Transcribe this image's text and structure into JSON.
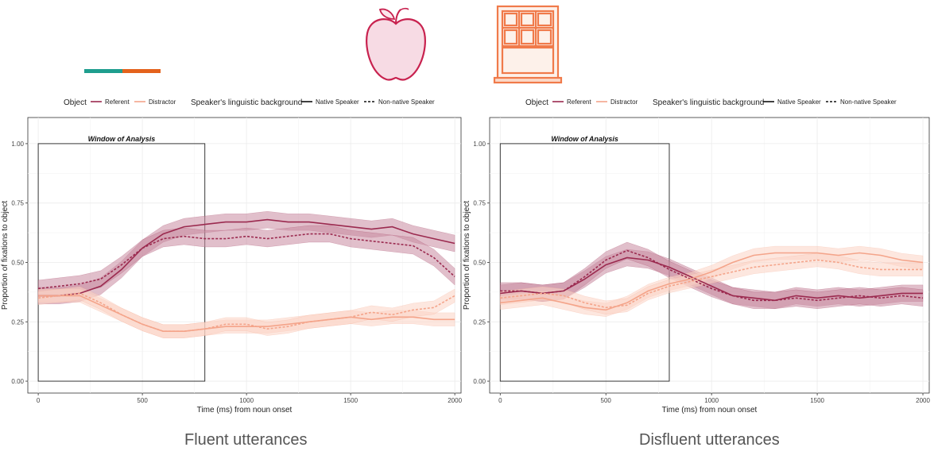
{
  "captions": {
    "fluent": "Fluent utterances",
    "disfluent": "Disfluent utterances"
  },
  "legend": {
    "object_title": "Object",
    "referent": "Referent",
    "distractor": "Distractor",
    "background_title": "Speaker's linguistic background",
    "native": "Native Speaker",
    "nonnative": "Non-native Speaker"
  },
  "colors": {
    "referent": "#9b2a4f",
    "referent_band": "#c98aa0",
    "distractor": "#f4a48a",
    "distractor_band": "#fbd3c4",
    "timeline_teal": "#1f9e8e",
    "timeline_orange": "#e4621c",
    "apple": "#c8224f",
    "window": "#f07a4a"
  },
  "icons": [
    "apple-icon",
    "window-icon"
  ],
  "chart_data": [
    {
      "type": "line",
      "name": "fluent",
      "annotation": "Window of Analysis",
      "window_of_analysis": [
        0,
        800
      ],
      "xlabel": "Time (ms) from noun onset",
      "ylabel": "Proportion of fixations to object",
      "xlim": [
        -50,
        2030
      ],
      "ylim": [
        -0.05,
        1.11
      ],
      "xticks": [
        0,
        500,
        1000,
        1500,
        2000
      ],
      "yticks": [
        0.0,
        0.25,
        0.5,
        0.75,
        1.0
      ],
      "ytick_labels": [
        "0.00",
        "0.25",
        "0.50",
        "0.75",
        "1.00"
      ],
      "grid": true,
      "x": [
        0,
        100,
        200,
        300,
        400,
        500,
        600,
        700,
        800,
        900,
        1000,
        1100,
        1200,
        1300,
        1400,
        1500,
        1600,
        1700,
        1800,
        1900,
        2000
      ],
      "series": [
        {
          "object": "referent",
          "speaker": "native",
          "values": [
            0.36,
            0.36,
            0.37,
            0.4,
            0.47,
            0.56,
            0.62,
            0.65,
            0.66,
            0.67,
            0.67,
            0.68,
            0.67,
            0.67,
            0.66,
            0.65,
            0.64,
            0.65,
            0.62,
            0.6,
            0.58
          ]
        },
        {
          "object": "referent",
          "speaker": "nonnative",
          "values": [
            0.39,
            0.4,
            0.41,
            0.43,
            0.49,
            0.56,
            0.6,
            0.61,
            0.6,
            0.6,
            0.61,
            0.6,
            0.61,
            0.62,
            0.62,
            0.6,
            0.59,
            0.58,
            0.57,
            0.52,
            0.44
          ]
        },
        {
          "object": "distractor",
          "speaker": "native",
          "values": [
            0.36,
            0.36,
            0.36,
            0.32,
            0.28,
            0.24,
            0.21,
            0.21,
            0.22,
            0.23,
            0.23,
            0.23,
            0.24,
            0.25,
            0.26,
            0.27,
            0.26,
            0.27,
            0.27,
            0.26,
            0.26
          ]
        },
        {
          "object": "distractor",
          "speaker": "nonnative",
          "values": [
            0.35,
            0.36,
            0.37,
            0.33,
            0.28,
            0.24,
            0.21,
            0.21,
            0.22,
            0.24,
            0.24,
            0.22,
            0.23,
            0.25,
            0.26,
            0.27,
            0.29,
            0.28,
            0.3,
            0.31,
            0.36
          ]
        }
      ]
    },
    {
      "type": "line",
      "name": "disfluent",
      "annotation": "Window of Analysis",
      "window_of_analysis": [
        0,
        800
      ],
      "xlabel": "Time (ms) from noun onset",
      "ylabel": "Proportion of fixations to object",
      "xlim": [
        -50,
        2030
      ],
      "ylim": [
        -0.05,
        1.11
      ],
      "xticks": [
        0,
        500,
        1000,
        1500,
        2000
      ],
      "yticks": [
        0.0,
        0.25,
        0.5,
        0.75,
        1.0
      ],
      "ytick_labels": [
        "0.00",
        "0.25",
        "0.50",
        "0.75",
        "1.00"
      ],
      "grid": true,
      "x": [
        0,
        100,
        200,
        300,
        400,
        500,
        600,
        700,
        800,
        900,
        1000,
        1100,
        1200,
        1300,
        1400,
        1500,
        1600,
        1700,
        1800,
        1900,
        2000
      ],
      "series": [
        {
          "object": "referent",
          "speaker": "native",
          "values": [
            0.37,
            0.38,
            0.37,
            0.38,
            0.43,
            0.49,
            0.52,
            0.51,
            0.48,
            0.44,
            0.4,
            0.36,
            0.35,
            0.34,
            0.36,
            0.35,
            0.36,
            0.35,
            0.36,
            0.37,
            0.37
          ]
        },
        {
          "object": "referent",
          "speaker": "nonnative",
          "values": [
            0.38,
            0.38,
            0.37,
            0.38,
            0.44,
            0.51,
            0.55,
            0.52,
            0.47,
            0.43,
            0.39,
            0.36,
            0.34,
            0.34,
            0.35,
            0.34,
            0.35,
            0.36,
            0.35,
            0.36,
            0.35
          ]
        },
        {
          "object": "distractor",
          "speaker": "native",
          "values": [
            0.33,
            0.34,
            0.35,
            0.33,
            0.31,
            0.3,
            0.33,
            0.38,
            0.41,
            0.43,
            0.46,
            0.5,
            0.53,
            0.54,
            0.54,
            0.54,
            0.53,
            0.54,
            0.53,
            0.51,
            0.5
          ]
        },
        {
          "object": "distractor",
          "speaker": "nonnative",
          "values": [
            0.35,
            0.36,
            0.37,
            0.36,
            0.33,
            0.31,
            0.32,
            0.37,
            0.4,
            0.42,
            0.44,
            0.46,
            0.48,
            0.49,
            0.5,
            0.51,
            0.5,
            0.48,
            0.47,
            0.47,
            0.47
          ]
        }
      ]
    }
  ]
}
